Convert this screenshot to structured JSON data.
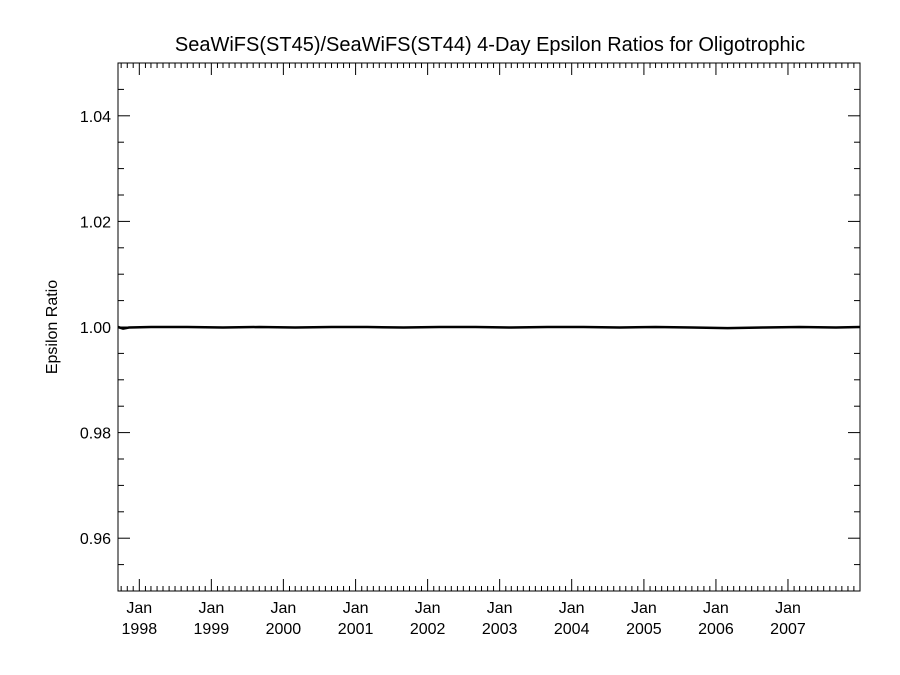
{
  "chart_data": {
    "type": "line",
    "title": "SeaWiFS(ST45)/SeaWiFS(ST44) 4-Day Epsilon Ratios for Oligotrophic",
    "xlabel": "",
    "ylabel": "Epsilon Ratio",
    "ylim": [
      0.95,
      1.05
    ],
    "xlim": [
      "1997-09-15",
      "2008-01-01"
    ],
    "yticks": [
      0.96,
      0.98,
      1.0,
      1.02,
      1.04
    ],
    "ytick_labels": [
      "0.96",
      "0.98",
      "1.00",
      "1.02",
      "1.04"
    ],
    "xticks": [
      {
        "date": "1998-01-01",
        "line1": "Jan",
        "line2": "1998"
      },
      {
        "date": "1999-01-01",
        "line1": "Jan",
        "line2": "1999"
      },
      {
        "date": "2000-01-01",
        "line1": "Jan",
        "line2": "2000"
      },
      {
        "date": "2001-01-01",
        "line1": "Jan",
        "line2": "2001"
      },
      {
        "date": "2002-01-01",
        "line1": "Jan",
        "line2": "2002"
      },
      {
        "date": "2003-01-01",
        "line1": "Jan",
        "line2": "2003"
      },
      {
        "date": "2004-01-01",
        "line1": "Jan",
        "line2": "2004"
      },
      {
        "date": "2005-01-01",
        "line1": "Jan",
        "line2": "2005"
      },
      {
        "date": "2006-01-01",
        "line1": "Jan",
        "line2": "2006"
      },
      {
        "date": "2007-01-01",
        "line1": "Jan",
        "line2": "2007"
      }
    ],
    "grid": false,
    "legend": "none",
    "series": [
      {
        "color": "#000000",
        "points": [
          [
            "1997-09-15",
            1.0
          ],
          [
            "1997-10-10",
            0.9997
          ],
          [
            "1997-11-10",
            0.9999
          ],
          [
            "1998-03-01",
            1.0
          ],
          [
            "1998-09-01",
            1.0
          ],
          [
            "1999-03-01",
            0.9999
          ],
          [
            "1999-09-01",
            1.0
          ],
          [
            "2000-03-01",
            0.9999
          ],
          [
            "2000-09-01",
            1.0
          ],
          [
            "2001-03-01",
            1.0
          ],
          [
            "2001-09-01",
            0.9999
          ],
          [
            "2002-03-01",
            1.0
          ],
          [
            "2002-09-01",
            1.0
          ],
          [
            "2003-03-01",
            0.9999
          ],
          [
            "2003-09-01",
            1.0
          ],
          [
            "2004-03-01",
            1.0
          ],
          [
            "2004-09-01",
            0.9999
          ],
          [
            "2005-03-01",
            1.0
          ],
          [
            "2005-09-01",
            0.9999
          ],
          [
            "2006-03-01",
            0.9998
          ],
          [
            "2006-09-01",
            0.9999
          ],
          [
            "2007-03-01",
            1.0
          ],
          [
            "2007-09-01",
            0.9999
          ],
          [
            "2008-01-01",
            1.0
          ]
        ]
      }
    ]
  }
}
